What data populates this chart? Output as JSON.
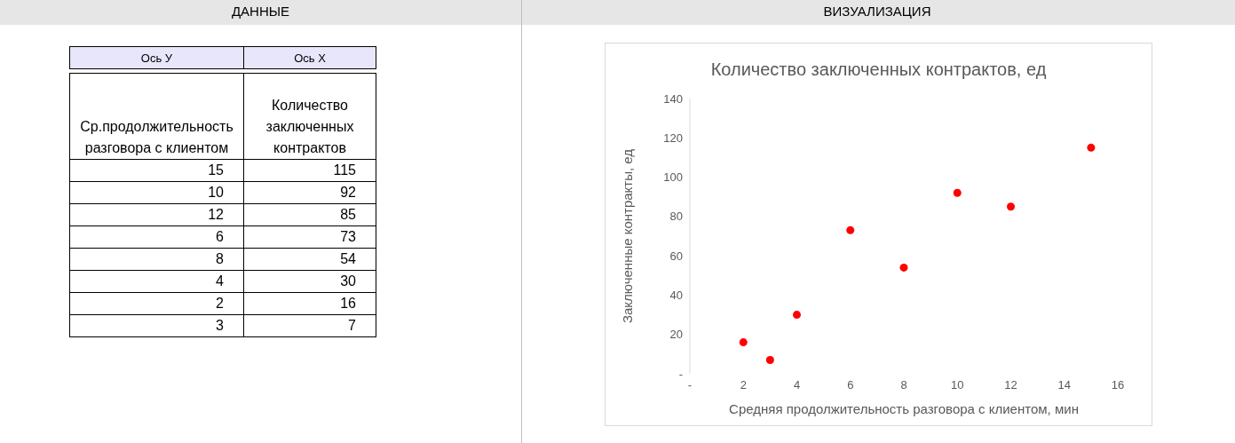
{
  "chart_data": {
    "type": "scatter",
    "title": "Количество заключенных контрактов, ед",
    "xlabel": "Средняя продолжительность разговора с клиентом, мин",
    "ylabel": "Заключенные контракты, ед",
    "x": [
      15,
      10,
      12,
      6,
      8,
      4,
      2,
      3
    ],
    "values": [
      115,
      92,
      85,
      73,
      54,
      30,
      16,
      7
    ],
    "color": "#ff0000",
    "marker": "circle",
    "xlim": [
      0,
      16
    ],
    "xticks": [
      {
        "value": 0,
        "label": "-"
      },
      2,
      4,
      6,
      8,
      10,
      12,
      14,
      16
    ],
    "ylim": [
      0,
      140
    ],
    "yticks": [
      {
        "value": 0,
        "label": "-"
      },
      20,
      40,
      60,
      80,
      100,
      120,
      140
    ],
    "annotations": [
      "ДАННЫЕ",
      "ВИЗУАЛИЗАЦИЯ",
      "Ось У",
      "Ось Х",
      "Ср.продолжительность разговора с клиентом",
      "Количество заключенных контрактов",
      "15",
      "115",
      "10",
      "92",
      "12",
      "85",
      "6",
      "73",
      "8",
      "54",
      "4",
      "30",
      "2",
      "16",
      "3",
      "7"
    ]
  }
}
